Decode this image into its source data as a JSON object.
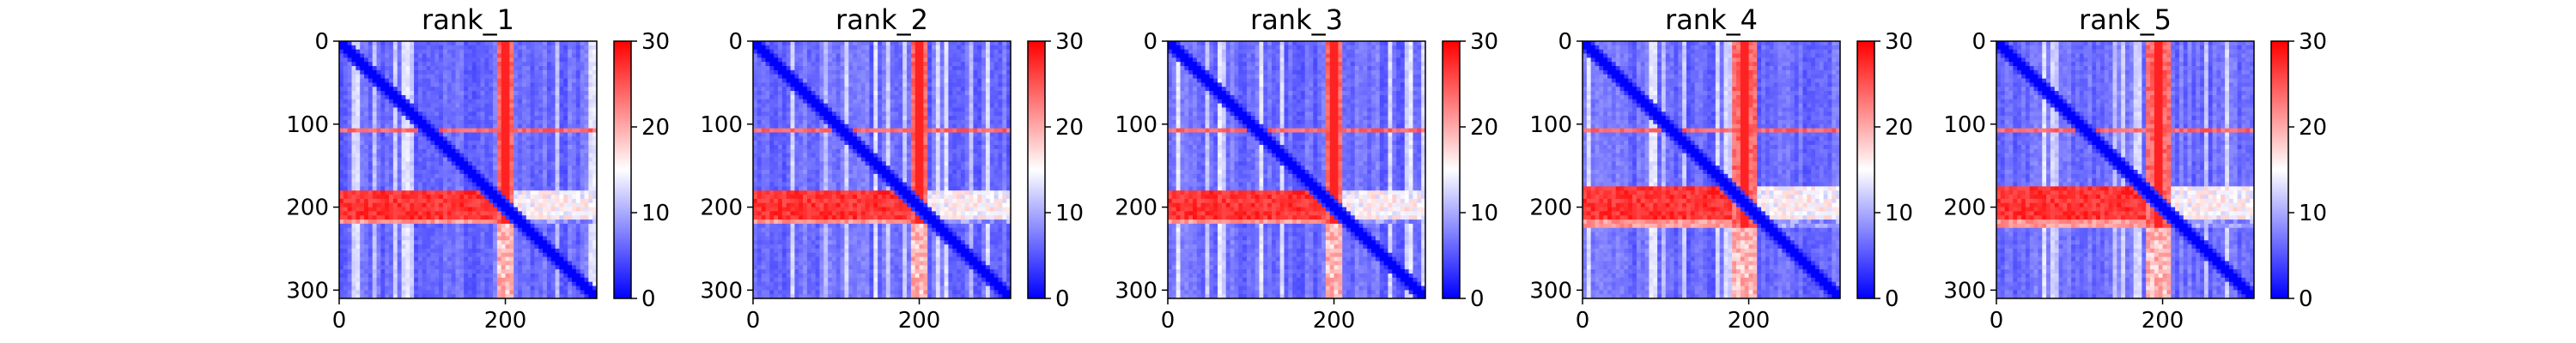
{
  "chart_data": [
    {
      "type": "heatmap",
      "title": "rank_1",
      "xticks": [
        "0",
        "200"
      ],
      "yticks": [
        "0",
        "100",
        "200",
        "300"
      ],
      "matrix_size": 310,
      "colorbar": {
        "ticks": [
          "0",
          "10",
          "20",
          "30"
        ],
        "range": [
          0,
          30
        ],
        "colormap": "bwr"
      },
      "features": {
        "band_row_start": 178,
        "band_row_end": 222,
        "band_col_start": 190,
        "band_col_end": 210,
        "stripe_row": 108,
        "stripe_col": 205
      }
    },
    {
      "type": "heatmap",
      "title": "rank_2",
      "xticks": [
        "0",
        "200"
      ],
      "yticks": [
        "0",
        "100",
        "200",
        "300"
      ],
      "matrix_size": 310,
      "colorbar": {
        "ticks": [
          "0",
          "10",
          "20",
          "30"
        ],
        "range": [
          0,
          30
        ],
        "colormap": "bwr"
      },
      "features": {
        "band_row_start": 178,
        "band_row_end": 222,
        "band_col_start": 188,
        "band_col_end": 212,
        "stripe_row": 108,
        "stripe_col": 203
      }
    },
    {
      "type": "heatmap",
      "title": "rank_3",
      "xticks": [
        "0",
        "200"
      ],
      "yticks": [
        "0",
        "100",
        "200",
        "300"
      ],
      "matrix_size": 310,
      "colorbar": {
        "ticks": [
          "0",
          "10",
          "20",
          "30"
        ],
        "range": [
          0,
          30
        ],
        "colormap": "bwr"
      },
      "features": {
        "band_row_start": 178,
        "band_row_end": 222,
        "band_col_start": 188,
        "band_col_end": 212,
        "stripe_row": 108,
        "stripe_col": 203
      }
    },
    {
      "type": "heatmap",
      "title": "rank_4",
      "xticks": [
        "0",
        "200"
      ],
      "yticks": [
        "0",
        "100",
        "200",
        "300"
      ],
      "matrix_size": 310,
      "colorbar": {
        "ticks": [
          "0",
          "10",
          "20",
          "30"
        ],
        "range": [
          0,
          30
        ],
        "colormap": "bwr"
      },
      "features": {
        "band_row_start": 176,
        "band_row_end": 224,
        "band_col_start": 178,
        "band_col_end": 210,
        "stripe_row": 108,
        "stripe_col": 195
      }
    },
    {
      "type": "heatmap",
      "title": "rank_5",
      "xticks": [
        "0",
        "200"
      ],
      "yticks": [
        "0",
        "100",
        "200",
        "300"
      ],
      "matrix_size": 310,
      "colorbar": {
        "ticks": [
          "0",
          "10",
          "20",
          "30"
        ],
        "range": [
          0,
          30
        ],
        "colormap": "bwr"
      },
      "features": {
        "band_row_start": 176,
        "band_row_end": 224,
        "band_col_start": 178,
        "band_col_end": 210,
        "stripe_row": 108,
        "stripe_col": 195
      }
    }
  ]
}
